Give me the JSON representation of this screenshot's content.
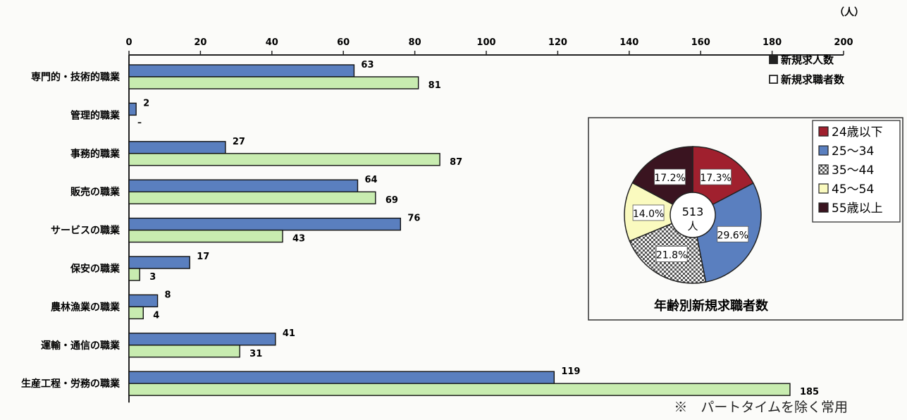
{
  "chart_data": [
    {
      "type": "bar",
      "orientation": "horizontal",
      "unit": "（人）",
      "categories": [
        "専門的・技術的職業",
        "管理的職業",
        "事務的職業",
        "販売の職業",
        "サービスの職業",
        "保安の職業",
        "農林漁業の職業",
        "運輸・通信の職業",
        "生産工程・労務の職業"
      ],
      "series": [
        {
          "name": "新規求人数",
          "values": [
            63,
            2,
            27,
            64,
            76,
            17,
            8,
            41,
            119
          ],
          "color": "#5a7fbf"
        },
        {
          "name": "新規求職者数",
          "values": [
            81,
            null,
            87,
            69,
            43,
            3,
            4,
            31,
            185
          ],
          "color": "#c8ecb0"
        }
      ],
      "value_labels": [
        [
          "63",
          "2",
          "27",
          "64",
          "76",
          "17",
          "8",
          "41",
          "119"
        ],
        [
          "81",
          "–",
          "87",
          "69",
          "43",
          "3",
          "4",
          "31",
          "185"
        ]
      ],
      "xlim": [
        0,
        200
      ],
      "xticks": [
        0,
        20,
        40,
        60,
        80,
        100,
        120,
        140,
        160,
        180,
        200
      ],
      "legend_position": "top-right",
      "grid": false
    },
    {
      "type": "pie",
      "style": "donut",
      "title": "年齢別新規求職者数",
      "center_label": [
        "513",
        "人"
      ],
      "slices": [
        {
          "name": "24歳以下",
          "value": 17.3,
          "label": "17.3%",
          "color": "#a0202e"
        },
        {
          "name": "25～34",
          "value": 29.6,
          "label": "29.6%",
          "color": "#5a7fbf"
        },
        {
          "name": "35～44",
          "value": 21.8,
          "label": "21.8%",
          "color": "#bbbbbb",
          "pattern": "checker"
        },
        {
          "name": "45～54",
          "value": 14.0,
          "label": "14.0%",
          "color": "#fafabf"
        },
        {
          "name": "55歳以上",
          "value": 17.2,
          "label": "17.2%",
          "color": "#3a1420"
        }
      ],
      "legend_position": "right"
    }
  ],
  "footnote": "※　パートタイムを除く常用"
}
